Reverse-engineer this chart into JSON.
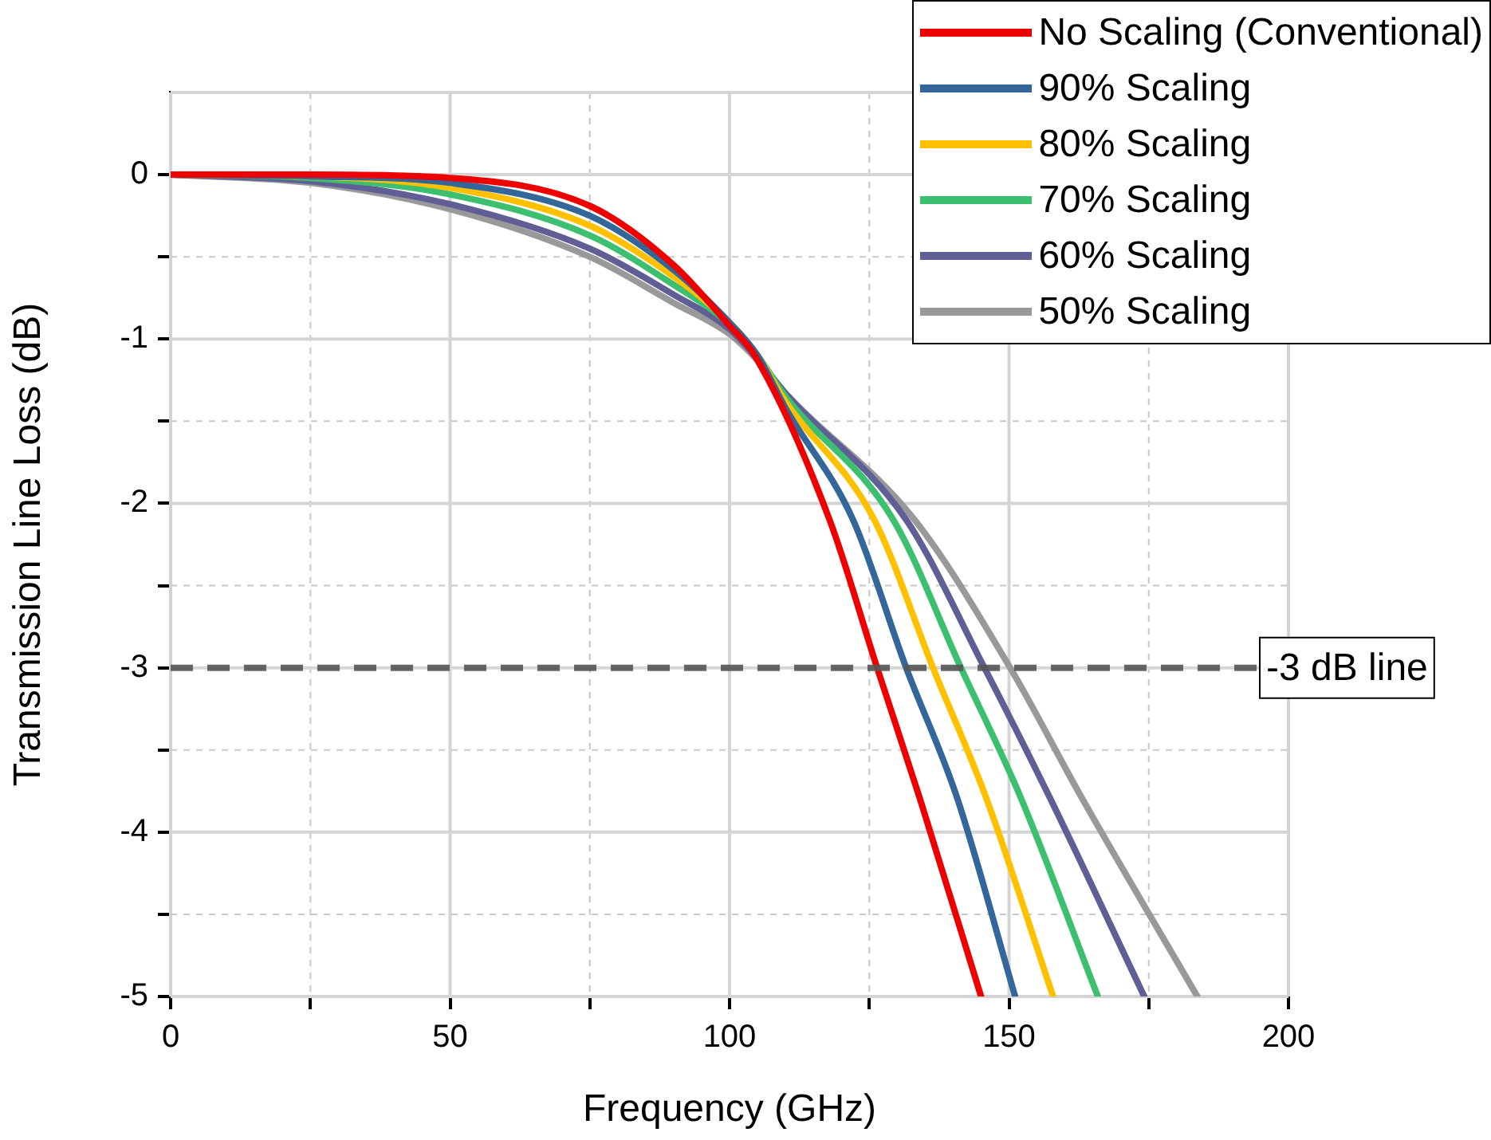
{
  "chart_data": {
    "type": "line",
    "xlabel": "Frequency (GHz)",
    "ylabel": "Transmission Line Loss (dB)",
    "xlim": [
      0,
      200
    ],
    "ylim": [
      -5,
      0.5
    ],
    "xticks": [
      0,
      {
        "value": 25,
        "label": null
      },
      50,
      {
        "value": 75,
        "label": null
      },
      100,
      {
        "value": 125,
        "label": null
      },
      150,
      {
        "value": 175,
        "label": null
      },
      200
    ],
    "yticks": [
      -5,
      {
        "value": -4.5,
        "label": null
      },
      -4,
      {
        "value": -3.5,
        "label": null
      },
      -3,
      {
        "value": -2.5,
        "label": null
      },
      -2,
      {
        "value": -1.5,
        "label": null
      },
      -1,
      {
        "value": -0.5,
        "label": null
      },
      0
    ],
    "grid": true,
    "legend": "top right",
    "line_style": "solid",
    "marker": "none",
    "ref_lines": [
      {
        "axis": "y",
        "value": -3,
        "label": "-3 dB line",
        "color": "#555555",
        "line_style": "dashed"
      }
    ],
    "series": [
      {
        "name": "No Scaling (Conventional)",
        "color": "#ee0000",
        "x": [
          0,
          25,
          50,
          75,
          90,
          100,
          104.5,
          117.9,
          126.4,
          134,
          145
        ],
        "values": [
          0,
          0,
          -0.02,
          -0.19,
          -0.55,
          -0.92,
          -1.1,
          -2.1,
          -3,
          -3.79,
          -5
        ]
      },
      {
        "name": "90% Scaling",
        "color": "#336699",
        "x": [
          0,
          25,
          50,
          75,
          90,
          100,
          105,
          110,
          122.1,
          131.6,
          140.7,
          151.1
        ],
        "values": [
          0,
          -0.01,
          -0.05,
          -0.25,
          -0.58,
          -0.9,
          -1.1,
          -1.42,
          -2.1,
          -3,
          -3.79,
          -5
        ]
      },
      {
        "name": "80% Scaling",
        "color": "#ffc000",
        "x": [
          0,
          25,
          50,
          75,
          90,
          100,
          105,
          110,
          125.9,
          136.4,
          145.9,
          157.9
        ],
        "values": [
          0,
          -0.01,
          -0.08,
          -0.31,
          -0.62,
          -0.9,
          -1.1,
          -1.38,
          -2.1,
          -3,
          -3.79,
          -5
        ]
      },
      {
        "name": "70% Scaling",
        "color": "#3cbf6e",
        "x": [
          0,
          25,
          50,
          75,
          90,
          100,
          105,
          110,
          129.3,
          141.4,
          152.1,
          165.9
        ],
        "values": [
          0,
          -0.02,
          -0.12,
          -0.37,
          -0.67,
          -0.91,
          -1.1,
          -1.35,
          -2.1,
          -3,
          -3.79,
          -5
        ]
      },
      {
        "name": "60% Scaling",
        "color": "#5f5f96",
        "x": [
          0,
          25,
          50,
          75,
          90,
          100,
          105,
          110,
          131.6,
          145.6,
          157.3,
          174.2
        ],
        "values": [
          0,
          -0.04,
          -0.18,
          -0.45,
          -0.73,
          -0.94,
          -1.12,
          -1.33,
          -2.1,
          -3,
          -3.79,
          -5
        ]
      },
      {
        "name": "50% Scaling",
        "color": "#999999",
        "x": [
          0,
          25,
          50,
          75,
          90,
          100,
          105,
          110,
          133.1,
          150.2,
          163,
          183.7
        ],
        "values": [
          0,
          -0.05,
          -0.21,
          -0.5,
          -0.78,
          -0.97,
          -1.13,
          -1.33,
          -2.1,
          -3,
          -3.79,
          -5
        ]
      }
    ]
  }
}
